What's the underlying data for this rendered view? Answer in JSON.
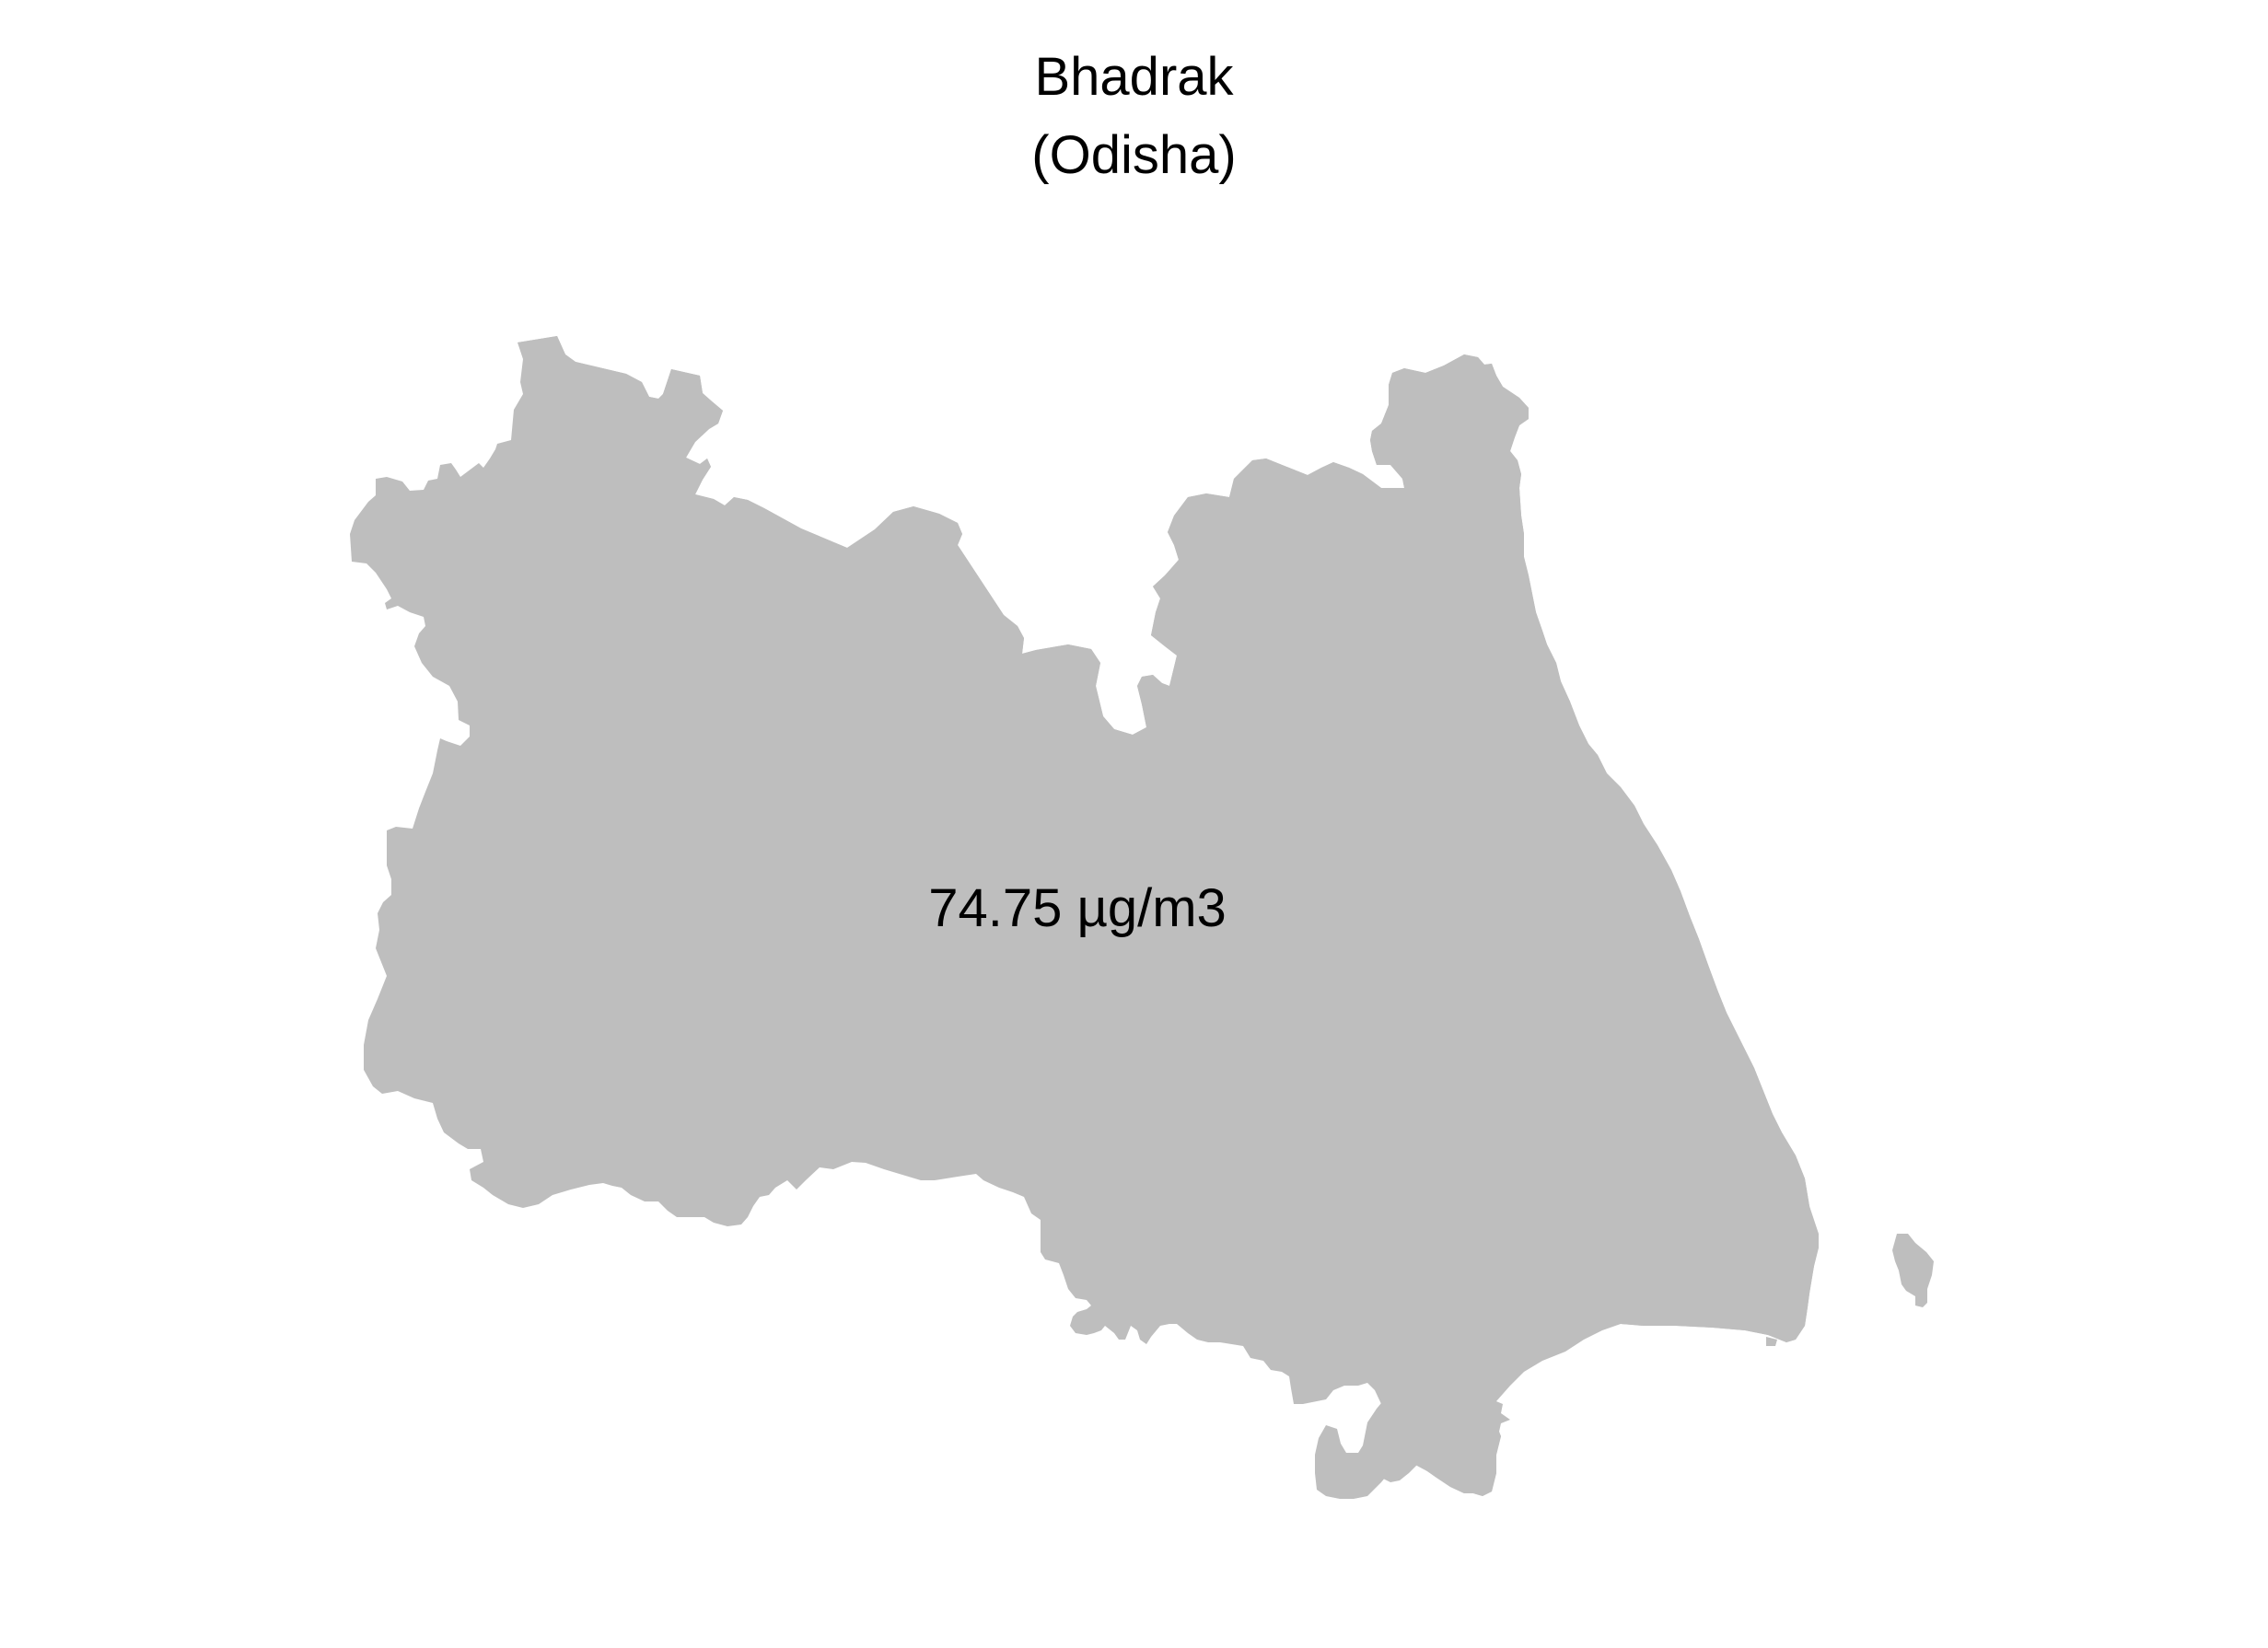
{
  "map": {
    "district": "Bhadrak",
    "state": "(Odisha)",
    "value_label": "74.75 µg/m3",
    "fill_color": "#bebebe",
    "background_color": "#ffffff"
  }
}
